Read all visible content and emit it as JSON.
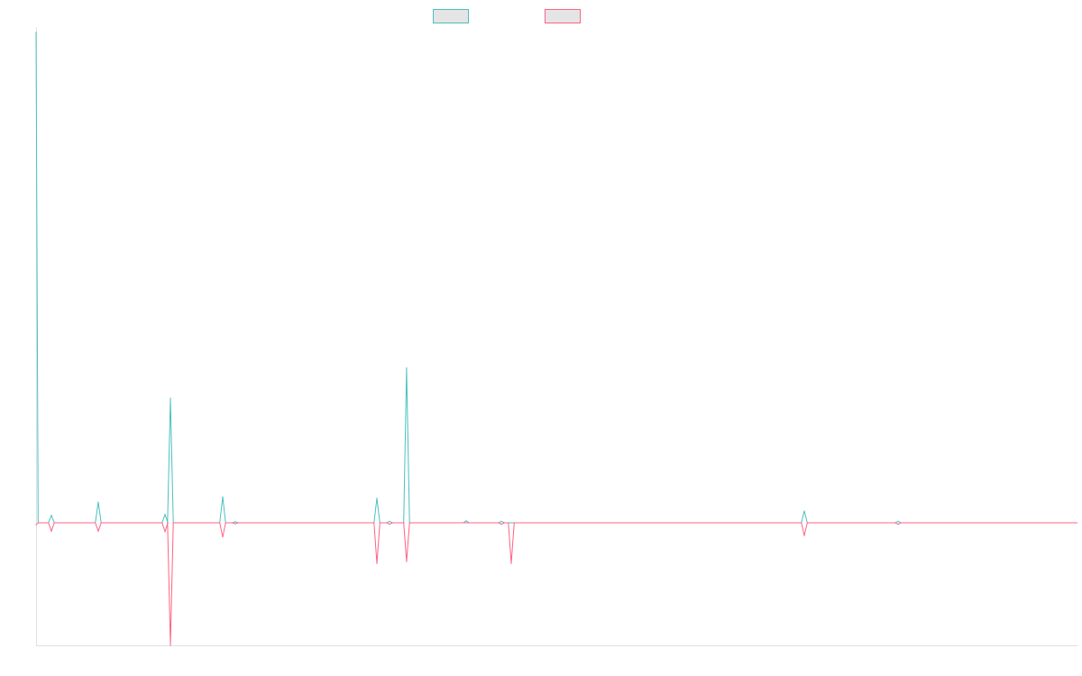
{
  "chart_data": {
    "type": "line",
    "title": "",
    "xlabel": "",
    "ylabel": "",
    "xlim": [
      0,
      100
    ],
    "ylim": [
      -25,
      100
    ],
    "grid": false,
    "legend_position": "top-center",
    "series": [
      {
        "name": "",
        "color": "#4bc0c0",
        "points": [
          [
            0,
            100
          ],
          [
            1.47,
            1.5
          ],
          [
            5.97,
            4.2
          ],
          [
            12.38,
            1.7
          ],
          [
            12.9,
            25.4
          ],
          [
            17.92,
            5.3
          ],
          [
            19.13,
            0.2
          ],
          [
            32.73,
            5.0
          ],
          [
            33.94,
            0.3
          ],
          [
            35.58,
            31.6
          ],
          [
            41.3,
            0.4
          ],
          [
            44.68,
            0.3
          ],
          [
            73.77,
            2.4
          ],
          [
            82.77,
            0.3
          ]
        ]
      },
      {
        "name": "",
        "color": "#ff6384",
        "points": [
          [
            0,
            -0.4
          ],
          [
            1.47,
            -1.7
          ],
          [
            5.97,
            -1.7
          ],
          [
            12.38,
            -1.8
          ],
          [
            12.9,
            -25
          ],
          [
            17.92,
            -2.9
          ],
          [
            19.13,
            -0.2
          ],
          [
            32.73,
            -8.3
          ],
          [
            33.94,
            -0.3
          ],
          [
            35.58,
            -7.9
          ],
          [
            44.68,
            -0.3
          ],
          [
            45.63,
            -8.3
          ],
          [
            73.77,
            -2.6
          ],
          [
            82.77,
            -0.3
          ]
        ]
      }
    ]
  }
}
